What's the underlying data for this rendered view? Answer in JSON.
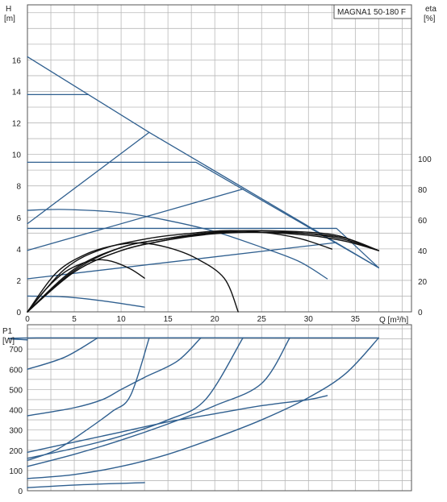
{
  "chart_data": [
    {
      "type": "line",
      "title": "MAGNA1 50-180 F",
      "ylabel": "H",
      "yunit": "[m]",
      "y2label": "eta",
      "y2unit": "[%]",
      "xlabel": "Q [m³/h]",
      "xlim": [
        0,
        41
      ],
      "ylim": [
        0,
        19.5
      ],
      "y2lim": [
        0,
        100
      ],
      "x_ticks": [
        0,
        5,
        10,
        15,
        20,
        25,
        30,
        35
      ],
      "y_ticks": [
        0,
        2,
        4,
        6,
        8,
        10,
        12,
        14,
        16
      ],
      "y2_ticks": [
        0,
        20,
        40,
        60,
        80,
        100
      ],
      "grid": true,
      "colors": {
        "pump": "#2f5f8f",
        "eff": "#111111"
      },
      "pump_curves": [
        {
          "values": [
            [
              0,
              16.2
            ],
            [
              13,
              11.4
            ],
            [
              37.5,
              2.8
            ]
          ]
        },
        {
          "values": [
            [
              0,
              13.8
            ],
            [
              6.5,
              13.8
            ]
          ]
        },
        {
          "values": [
            [
              0,
              9.5
            ],
            [
              18,
              9.5
            ],
            [
              37.5,
              2.8
            ]
          ]
        },
        {
          "values": [
            [
              0,
              5.6
            ],
            [
              13,
              11.4
            ]
          ]
        },
        {
          "values": [
            [
              0,
              3.9
            ],
            [
              23,
              7.8
            ]
          ]
        },
        {
          "values": [
            [
              0,
              2.1
            ],
            [
              33,
              4.4
            ]
          ]
        },
        {
          "values": [
            [
              0,
              5.3
            ],
            [
              33,
              5.3
            ],
            [
              37.5,
              2.8
            ]
          ]
        },
        {
          "values": [
            [
              0,
              6.45
            ],
            [
              4,
              6.5
            ],
            [
              10,
              6.3
            ],
            [
              15,
              5.8
            ],
            [
              20,
              5.1
            ],
            [
              25,
              4.1
            ],
            [
              29,
              3.2
            ],
            [
              32,
              2.1
            ]
          ]
        },
        {
          "values": [
            [
              0,
              1.0
            ],
            [
              4,
              0.95
            ],
            [
              8,
              0.7
            ],
            [
              12.5,
              0.3
            ]
          ]
        }
      ],
      "efficiency_curves": [
        {
          "values": [
            [
              0,
              0
            ],
            [
              3,
              25
            ],
            [
              6,
              37
            ],
            [
              9,
              43
            ],
            [
              12,
              45
            ],
            [
              15,
              42
            ],
            [
              18,
              35
            ],
            [
              21,
              22
            ],
            [
              22.5,
              0
            ]
          ]
        },
        {
          "values": [
            [
              0,
              0
            ],
            [
              2,
              15
            ],
            [
              4,
              26
            ],
            [
              6,
              32
            ],
            [
              7.5,
              34
            ],
            [
              9,
              33
            ],
            [
              11,
              28
            ],
            [
              12.5,
              22
            ]
          ]
        },
        {
          "values": [
            [
              0,
              0
            ],
            [
              4,
              28
            ],
            [
              8,
              41
            ],
            [
              13,
              48
            ],
            [
              17,
              51
            ],
            [
              21,
              53
            ],
            [
              25,
              52
            ],
            [
              29,
              48
            ],
            [
              32.5,
              41
            ]
          ]
        },
        {
          "values": [
            [
              0,
              0
            ],
            [
              5,
              28
            ],
            [
              10,
              42
            ],
            [
              15,
              48
            ],
            [
              20,
              52
            ],
            [
              25,
              53
            ],
            [
              30,
              52
            ],
            [
              33,
              50
            ],
            [
              35,
              46
            ],
            [
              37.5,
              40
            ]
          ]
        },
        {
          "values": [
            [
              0,
              0
            ],
            [
              5,
              26
            ],
            [
              10,
              40
            ],
            [
              15,
              47
            ],
            [
              20,
              51
            ],
            [
              25,
              52
            ],
            [
              30,
              51
            ],
            [
              34,
              48
            ],
            [
              37.5,
              40
            ]
          ]
        },
        {
          "values": [
            [
              0,
              0
            ],
            [
              5,
              27
            ],
            [
              10,
              42
            ],
            [
              15,
              48
            ],
            [
              20,
              52
            ],
            [
              25,
              53
            ],
            [
              30,
              51
            ],
            [
              34,
              47
            ],
            [
              37.5,
              40
            ]
          ]
        },
        {
          "values": [
            [
              0,
              0
            ],
            [
              5,
              26
            ],
            [
              10,
              40
            ],
            [
              15,
              47
            ],
            [
              19,
              51
            ],
            [
              24,
              52
            ],
            [
              30,
              50
            ],
            [
              34,
              46
            ],
            [
              37.5,
              40
            ]
          ]
        }
      ]
    },
    {
      "type": "line",
      "ylabel": "P1",
      "yunit": "[W]",
      "xlim": [
        0,
        41
      ],
      "ylim": [
        0,
        820
      ],
      "y_ticks": [
        0,
        100,
        200,
        300,
        400,
        500,
        600,
        700
      ],
      "grid": true,
      "colors": {
        "power": "#2f5f8f"
      },
      "power_curves": [
        {
          "values": [
            [
              0,
              745
            ],
            [
              1,
              755
            ],
            [
              37.5,
              755
            ]
          ]
        },
        {
          "values": [
            [
              0,
              600
            ],
            [
              4,
              660
            ],
            [
              7.5,
              755
            ]
          ]
        },
        {
          "values": [
            [
              0,
              370
            ],
            [
              5,
              410
            ],
            [
              8,
              450
            ],
            [
              10,
              500
            ],
            [
              12.5,
              560
            ],
            [
              16,
              640
            ],
            [
              18.5,
              755
            ]
          ]
        },
        {
          "values": [
            [
              0,
              150
            ],
            [
              3,
              200
            ],
            [
              6,
              290
            ],
            [
              9,
              390
            ],
            [
              11,
              470
            ],
            [
              13,
              755
            ]
          ]
        },
        {
          "values": [
            [
              0,
              190
            ],
            [
              5,
              240
            ],
            [
              10,
              290
            ],
            [
              15,
              340
            ],
            [
              20,
              380
            ],
            [
              25,
              420
            ],
            [
              30,
              450
            ],
            [
              32,
              470
            ]
          ]
        },
        {
          "values": [
            [
              0,
              160
            ],
            [
              5,
              210
            ],
            [
              10,
              270
            ],
            [
              15,
              350
            ],
            [
              19,
              450
            ],
            [
              23,
              755
            ]
          ]
        },
        {
          "values": [
            [
              0,
              120
            ],
            [
              5,
              180
            ],
            [
              10,
              250
            ],
            [
              15,
              330
            ],
            [
              20,
              420
            ],
            [
              25,
              530
            ],
            [
              28,
              755
            ]
          ]
        },
        {
          "values": [
            [
              0,
              60
            ],
            [
              5,
              80
            ],
            [
              10,
              120
            ],
            [
              15,
              180
            ],
            [
              20,
              260
            ],
            [
              25,
              350
            ],
            [
              30,
              460
            ],
            [
              34,
              580
            ],
            [
              37.5,
              755
            ]
          ]
        },
        {
          "values": [
            [
              0,
              15
            ],
            [
              6,
              30
            ],
            [
              12.5,
              40
            ]
          ]
        }
      ]
    }
  ]
}
